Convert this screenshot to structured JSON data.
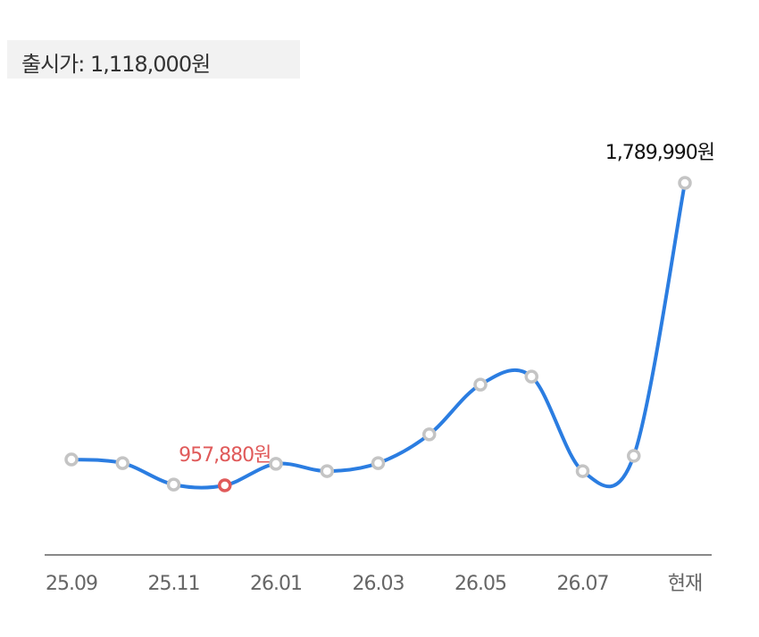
{
  "header": {
    "release_price": "출시가: 1,118,000원"
  },
  "chart_data": {
    "type": "line",
    "categories": [
      "25.09",
      null,
      "25.11",
      null,
      "26.01",
      null,
      "26.03",
      null,
      "26.05",
      null,
      "26.07",
      null,
      "현재"
    ],
    "values": [
      1029000,
      1019000,
      960000,
      957880,
      1017000,
      997000,
      1019000,
      1098000,
      1235000,
      1257000,
      997000,
      1039000,
      1789990
    ],
    "value_labels": [
      null,
      null,
      null,
      "957,880원",
      null,
      null,
      null,
      null,
      null,
      null,
      null,
      null,
      "1,789,990원"
    ],
    "color": "#2b7de1",
    "marker_color": "#c4c4c4",
    "highlight_color": "#e05a5a"
  }
}
